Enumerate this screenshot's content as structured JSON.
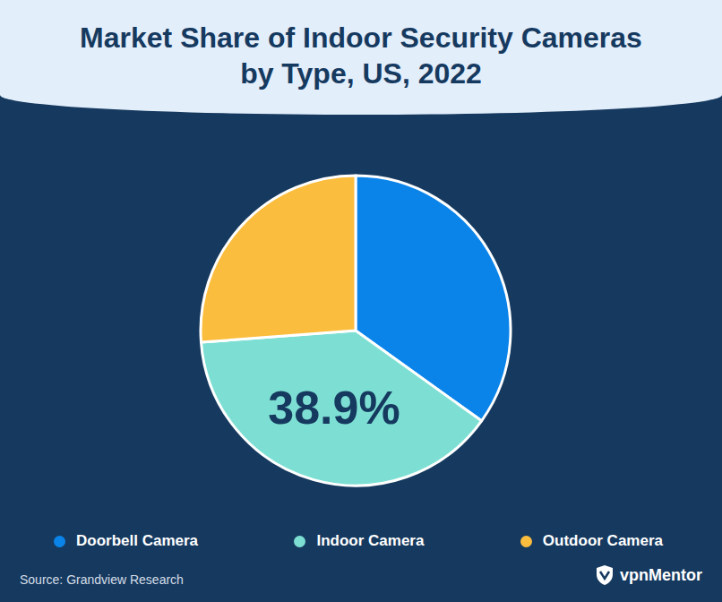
{
  "chart_data": {
    "type": "pie",
    "title": "Market Share of Indoor Security Cameras by Type, US, 2022",
    "categories": [
      "Doorbell Camera",
      "Indoor Camera",
      "Outdoor Camera"
    ],
    "values": [
      34.9,
      38.9,
      26.2
    ],
    "value_labels": [
      null,
      "38.9%",
      null
    ],
    "data_labels": true,
    "colors": [
      "#0b84ea",
      "#7ddfd3",
      "#fbbd3e"
    ]
  },
  "source": "Source: Grandview Research",
  "brand": "vpnMentor"
}
